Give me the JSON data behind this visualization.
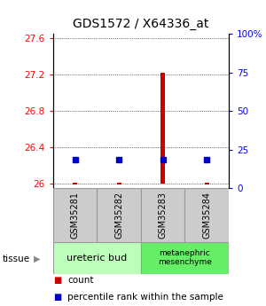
{
  "title": "GDS1572 / X64336_at",
  "samples": [
    "GSM35281",
    "GSM35282",
    "GSM35283",
    "GSM35284"
  ],
  "ylim_left": [
    25.95,
    27.65
  ],
  "yticks_left": [
    26,
    26.4,
    26.8,
    27.2,
    27.6
  ],
  "ylim_right": [
    0,
    100
  ],
  "yticks_right": [
    0,
    25,
    50,
    75,
    100
  ],
  "count_values": [
    26.0,
    26.0,
    27.22,
    26.0
  ],
  "count_base": 26.0,
  "percentile_values": [
    26.26,
    26.26,
    26.26,
    26.26
  ],
  "tissue_labels": [
    "ureteric bud",
    "metanephric\nmesenchyme"
  ],
  "tissue_color1": "#bbffbb",
  "tissue_color2": "#66ee66",
  "sample_box_color": "#cccccc",
  "sample_box_edge": "#999999",
  "count_color": "#cc0000",
  "percentile_color": "#0000cc",
  "grid_color": "#000000",
  "title_fontsize": 10,
  "tick_fontsize": 7.5,
  "legend_fontsize": 7.5
}
